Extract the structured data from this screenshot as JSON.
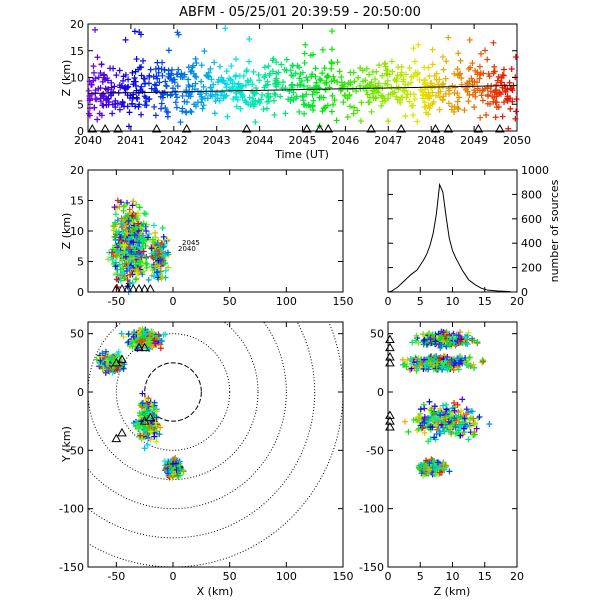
{
  "title": "ABFM - 05/25/01 20:39:59 - 20:50:00",
  "chart_data": [
    {
      "panel": "time-height",
      "type": "scatter",
      "xlabel": "Time (UT)",
      "ylabel": "Z (km)",
      "xlim": [
        2040,
        2050
      ],
      "ylim": [
        0,
        20
      ],
      "xticks": [
        "2040",
        "2041",
        "2042",
        "2043",
        "2044",
        "2045",
        "2046",
        "2047",
        "2048",
        "2049",
        "2050"
      ],
      "yticks": [
        "0",
        "5",
        "10",
        "15",
        "20"
      ],
      "trend_line": {
        "x": [
          2040,
          2050
        ],
        "y": [
          7.0,
          8.5
        ]
      },
      "triangle_markers_x": [
        2040.1,
        2040.4,
        2040.7,
        2041.6,
        2042.3,
        2043.7,
        2045.1,
        2045.4,
        2045.6,
        2046.6,
        2047.3,
        2048.1,
        2048.4,
        2049.1,
        2049.6
      ],
      "point_density_description": "sources distributed mostly between 5 and 13 km, colored by time"
    },
    {
      "panel": "x-z",
      "type": "scatter",
      "xlabel": "",
      "ylabel": "Z (km)",
      "xlim": [
        -75,
        150
      ],
      "ylim": [
        0,
        20
      ],
      "xticks": [
        "-50",
        "0",
        "50",
        "100",
        "150"
      ],
      "yticks": [
        "0",
        "5",
        "10",
        "15",
        "20"
      ],
      "clusters": [
        {
          "x_center": -38,
          "z_center": 8,
          "x_spread": 14,
          "z_spread": 5
        },
        {
          "x_center": -12,
          "z_center": 6,
          "x_spread": 8,
          "z_spread": 3
        }
      ],
      "annotations": [
        "2045",
        "2040"
      ]
    },
    {
      "panel": "altitude-histogram",
      "type": "line",
      "xlabel": "",
      "ylabel": "number of sources",
      "xlim": [
        0,
        20
      ],
      "ylim": [
        0,
        1000
      ],
      "xticks": [
        "0",
        "5",
        "10",
        "15",
        "20"
      ],
      "yticks": [
        "0",
        "200",
        "400",
        "600",
        "800",
        "1000"
      ],
      "x": [
        0.5,
        1.5,
        2.5,
        3.5,
        4.5,
        5.0,
        5.5,
        6.0,
        6.5,
        7.0,
        7.5,
        8.0,
        8.5,
        9.0,
        9.5,
        10.0,
        10.5,
        11.0,
        11.5,
        12.0,
        12.5,
        13.5,
        14.5,
        15.5,
        17.0,
        19.0
      ],
      "values": [
        5,
        40,
        90,
        140,
        180,
        220,
        260,
        310,
        380,
        480,
        640,
        880,
        820,
        620,
        440,
        340,
        280,
        230,
        180,
        140,
        100,
        60,
        30,
        15,
        8,
        3
      ]
    },
    {
      "panel": "x-y plan view",
      "type": "scatter",
      "xlabel": "X (km)",
      "ylabel": "Y (km)",
      "xlim": [
        -75,
        150
      ],
      "ylim": [
        -150,
        60
      ],
      "xticks": [
        "-50",
        "0",
        "50",
        "100",
        "150"
      ],
      "yticks": [
        "-150",
        "-100",
        "-50",
        "0",
        "50"
      ],
      "range_rings_km": [
        25,
        50,
        75,
        100,
        125,
        150
      ],
      "clusters": [
        {
          "x_center": -25,
          "y_center": 45,
          "x_spread": 15,
          "y_spread": 8
        },
        {
          "x_center": -55,
          "y_center": 25,
          "x_spread": 10,
          "y_spread": 8
        },
        {
          "x_center": -22,
          "y_center": -25,
          "x_spread": 10,
          "y_spread": 18
        },
        {
          "x_center": 0,
          "y_center": -65,
          "x_spread": 7,
          "y_spread": 7
        }
      ]
    },
    {
      "panel": "z-y",
      "type": "scatter",
      "xlabel": "Z (km)",
      "ylabel": "",
      "xlim": [
        0,
        20
      ],
      "ylim": [
        -150,
        60
      ],
      "xticks": [
        "0",
        "5",
        "10",
        "15",
        "20"
      ],
      "yticks": [
        "-150",
        "-100",
        "-50",
        "0",
        "50"
      ],
      "clusters": [
        {
          "z_center": 9,
          "y_center": 45,
          "z_spread": 4,
          "y_spread": 6
        },
        {
          "z_center": 8,
          "y_center": 25,
          "z_spread": 5,
          "y_spread": 6
        },
        {
          "z_center": 9,
          "y_center": -25,
          "z_spread": 5,
          "y_spread": 15
        },
        {
          "z_center": 7,
          "y_center": -65,
          "z_spread": 2,
          "y_spread": 6
        }
      ]
    }
  ]
}
